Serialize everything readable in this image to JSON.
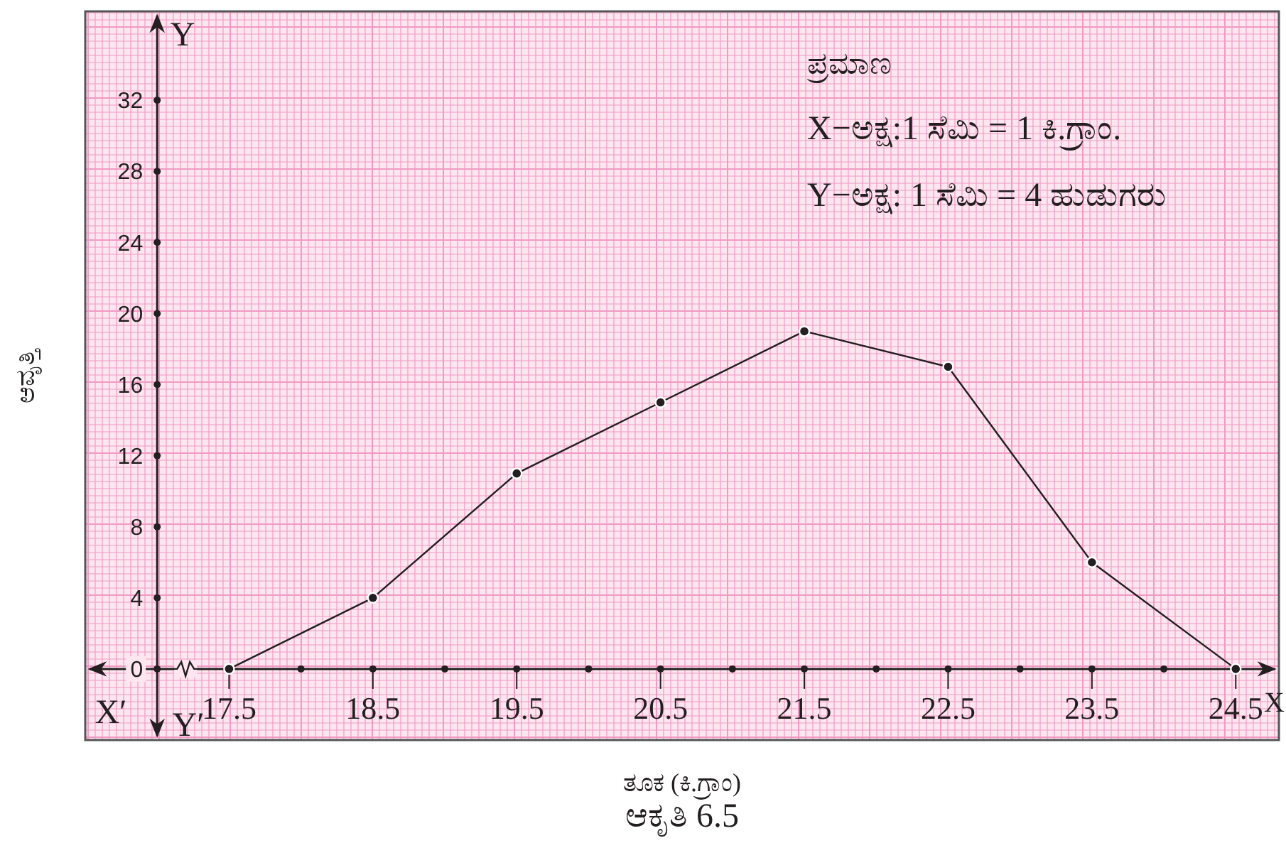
{
  "chart_data": {
    "type": "line",
    "xlabel": "ತೂಕ (ಕಿ.ಗ್ರಾಂ)",
    "ylabel": "ಆವೃತ್ತಿ",
    "annotations": [
      "ಪ್ರಮಾಣ",
      "X−ಅಕ್ಷ:1 ಸೆಮಿ = 1 ಕಿ.ಗ್ರಾಂ.",
      "Y−ಅಕ್ಷ: 1 ಸೆಮಿ  = 4  ಹುಡುಗರು",
      "X",
      "X′",
      "Y",
      "Y′",
      "ಆಕೃತಿ 6.5"
    ],
    "x": [
      17.5,
      18.5,
      19.5,
      20.5,
      21.5,
      22.5,
      23.5,
      24.5
    ],
    "series": [
      {
        "color": "#231f20",
        "values": [
          0,
          4,
          11,
          15,
          19,
          17,
          6,
          0
        ]
      }
    ],
    "xlim": [
      16.5,
      24.8
    ],
    "ylim": [
      -4,
      37
    ],
    "xticks": [
      {
        "value": 17.5,
        "label": "17.5"
      },
      {
        "value": 18,
        "label": null
      },
      {
        "value": 18.5,
        "label": "18.5"
      },
      {
        "value": 19,
        "label": null
      },
      {
        "value": 19.5,
        "label": "19.5"
      },
      {
        "value": 20,
        "label": null
      },
      {
        "value": 20.5,
        "label": "20.5"
      },
      {
        "value": 21,
        "label": null
      },
      {
        "value": 21.5,
        "label": "21.5"
      },
      {
        "value": 22,
        "label": null
      },
      {
        "value": 22.5,
        "label": "22.5"
      },
      {
        "value": 23,
        "label": null
      },
      {
        "value": 23.5,
        "label": "23.5"
      },
      {
        "value": 24,
        "label": null
      },
      {
        "value": 24.5,
        "label": "24.5"
      }
    ],
    "yticks": [
      0,
      4,
      8,
      12,
      16,
      20,
      24,
      28,
      32
    ],
    "grid": true,
    "marker": "circle",
    "line_style": "solid"
  }
}
